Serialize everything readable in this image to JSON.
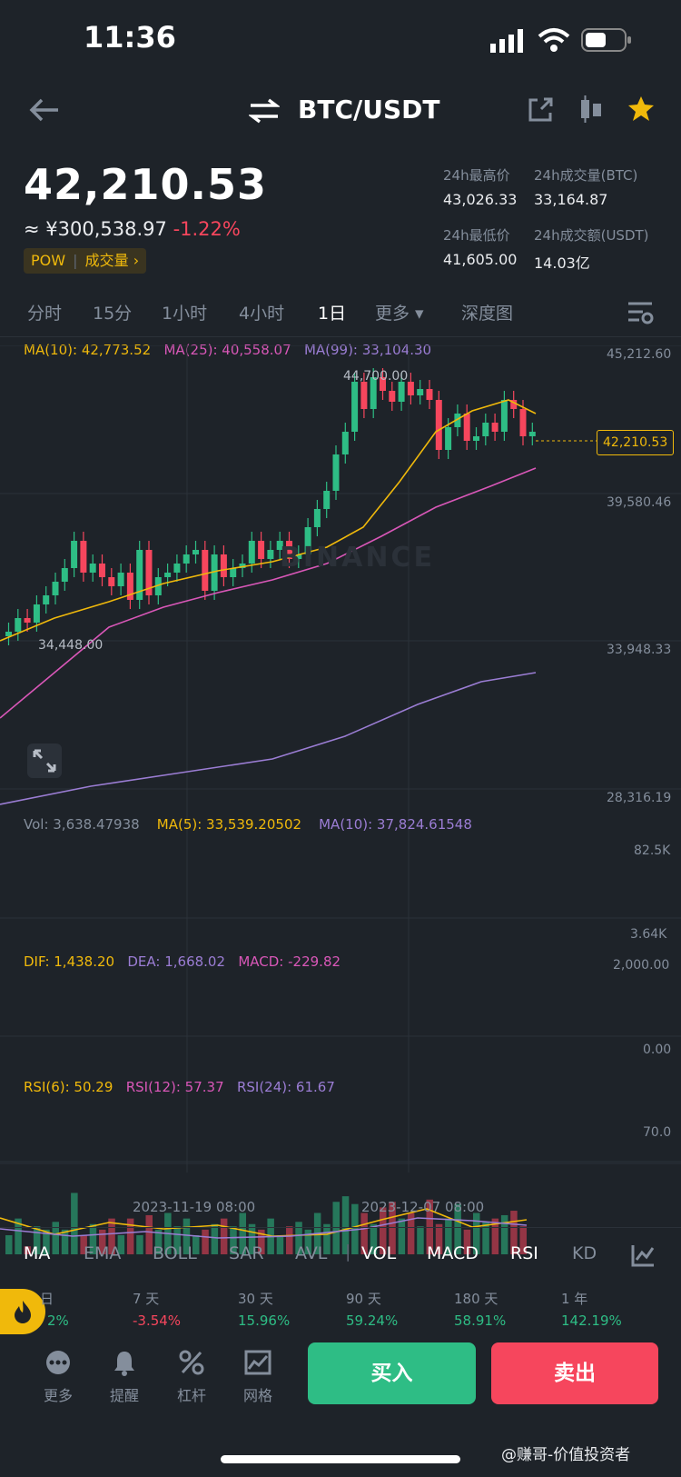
{
  "status_bar": {
    "time": "11:36"
  },
  "header": {
    "title": "BTC/USDT"
  },
  "ticker": {
    "price": "42,210.53",
    "cny": "≈ ¥300,538.97",
    "change": "-1.22%",
    "tag_pow": "POW",
    "tag_volume": "成交量 ›",
    "stats": [
      {
        "label": "24h最高价",
        "value": "43,026.33"
      },
      {
        "label": "24h成交量(BTC)",
        "value": "33,164.87"
      },
      {
        "label": "24h最低价",
        "value": "41,605.00"
      },
      {
        "label": "24h成交额(USDT)",
        "value": "14.03亿"
      }
    ]
  },
  "timeframe_tabs": [
    {
      "label": "分时"
    },
    {
      "label": "15分"
    },
    {
      "label": "1小时"
    },
    {
      "label": "4小时"
    },
    {
      "label": "1日"
    },
    {
      "label": "更多 ▾"
    },
    {
      "label": "深度图"
    }
  ],
  "ma_legend": {
    "ma10": "MA(10): 42,773.52",
    "ma25": "MA(25): 40,558.07",
    "ma99": "MA(99): 33,104.30"
  },
  "price_axis": [
    "45,212.60",
    "39,580.46",
    "33,948.33",
    "28,316.19"
  ],
  "price_annotations": {
    "high": "44,700.00",
    "low": "34,448.00",
    "current": "42,210.53"
  },
  "watermark": "BINANCE",
  "vol_legend": {
    "vol": "Vol: 3,638.47938",
    "ma5": "MA(5): 33,539.20502",
    "ma10": "MA(10): 37,824.61548"
  },
  "vol_axis": [
    "82.5K",
    "3.64K"
  ],
  "macd_legend": {
    "dif": "DIF: 1,438.20",
    "dea": "DEA: 1,668.02",
    "macd": "MACD: -229.82"
  },
  "macd_axis": [
    "2,000.00",
    "0.00"
  ],
  "rsi_legend": {
    "rsi6": "RSI(6): 50.29",
    "rsi12": "RSI(12): 57.37",
    "rsi24": "RSI(24): 61.67"
  },
  "rsi_axis": [
    "70.0"
  ],
  "date_labels": [
    "2023-11-19 08:00",
    "2023-12-07 08:00"
  ],
  "indicator_tabs": [
    "MA",
    "EMA",
    "BOLL",
    "SAR",
    "AVL",
    "VOL",
    "MACD",
    "RSI",
    "KD"
  ],
  "performance": [
    {
      "period": "日",
      "value": "2%"
    },
    {
      "period": "7 天",
      "value": "-3.54%"
    },
    {
      "period": "30 天",
      "value": "15.96%"
    },
    {
      "period": "90 天",
      "value": "59.24%"
    },
    {
      "period": "180 天",
      "value": "58.91%"
    },
    {
      "period": "1 年",
      "value": "142.19%"
    }
  ],
  "bottom_nav": [
    {
      "label": "更多"
    },
    {
      "label": "提醒"
    },
    {
      "label": "杠杆"
    },
    {
      "label": "网格"
    }
  ],
  "actions": {
    "buy": "买入",
    "sell": "卖出"
  },
  "credit": "@赚哥-价值投资者",
  "colors": {
    "up": "#2ebd85",
    "down": "#f6465d",
    "accent": "#f0b90b",
    "ma99": "#9b7dd4",
    "ma25": "#d957b8"
  }
}
